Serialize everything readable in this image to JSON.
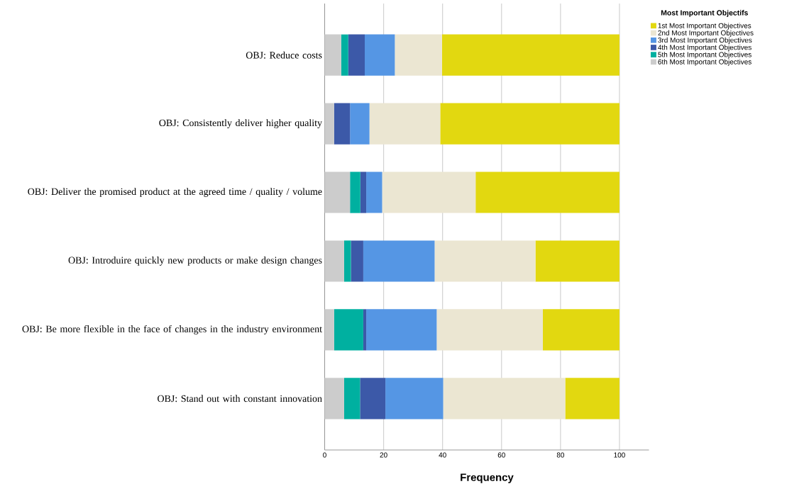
{
  "chart_data": {
    "type": "bar",
    "orientation": "horizontal",
    "stacked": true,
    "xlabel": "Frequency",
    "legend_title": "Most Important Objectifs",
    "categories": [
      "OBJ: Reduce costs",
      "OBJ: Consistently deliver higher quality",
      "OBJ: Deliver the promised product at the agreed time / quality / volume",
      "OBJ: Introduire quickly new products or make design changes",
      "OBJ: Be more flexible in the face of changes in the industry environment",
      "OBJ: Stand out with constant innovation"
    ],
    "series": [
      {
        "name": "6th Most Important Objectives",
        "color": "#cccccc",
        "values": [
          5.6,
          3.2,
          8.6,
          6.6,
          3.2,
          6.6
        ]
      },
      {
        "name": "5th Most Important Objectives",
        "color": "#00b0a0",
        "values": [
          2.4,
          0,
          3.5,
          2.3,
          9.9,
          5.4
        ]
      },
      {
        "name": "4th Most Important Objectives",
        "color": "#3c59a8",
        "values": [
          5.6,
          5.4,
          2.0,
          4.2,
          1.0,
          8.6
        ]
      },
      {
        "name": "3rd Most Important Objectives",
        "color": "#5596e4",
        "values": [
          10.2,
          6.6,
          5.4,
          24.2,
          23.9,
          19.6
        ]
      },
      {
        "name": "2nd Most Important Objectives",
        "color": "#ebe6d2",
        "values": [
          16.0,
          24.0,
          31.7,
          34.2,
          36.0,
          41.4
        ]
      },
      {
        "name": "1st Most Important Objectives",
        "color": "#e2d810",
        "values": [
          60.2,
          60.8,
          48.8,
          28.5,
          26.0,
          18.4
        ]
      }
    ],
    "xlim": [
      0,
      110
    ],
    "xticks": [
      0,
      20,
      40,
      60,
      80,
      100
    ],
    "grid": "x",
    "legend": "top right"
  }
}
